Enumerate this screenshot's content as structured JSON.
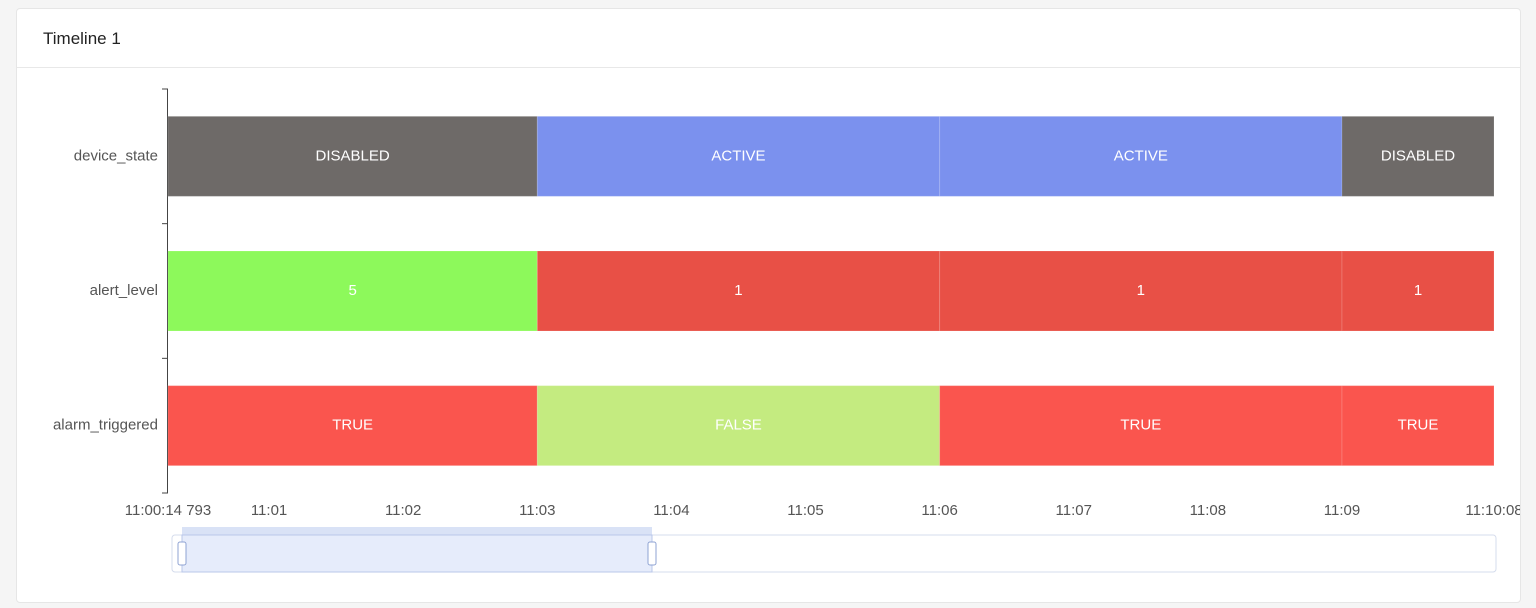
{
  "chart_data": {
    "type": "timeline",
    "title": "Timeline 1",
    "xlim": [
      14.793,
      608
    ],
    "xticks": [
      {
        "value": 14.793,
        "label": "11:00:14 793"
      },
      {
        "value": 60,
        "label": "11:01"
      },
      {
        "value": 120,
        "label": "11:02"
      },
      {
        "value": 180,
        "label": "11:03"
      },
      {
        "value": 240,
        "label": "11:04"
      },
      {
        "value": 300,
        "label": "11:05"
      },
      {
        "value": 360,
        "label": "11:06"
      },
      {
        "value": 420,
        "label": "11:07"
      },
      {
        "value": 480,
        "label": "11:08"
      },
      {
        "value": 540,
        "label": "11:09"
      },
      {
        "value": 608,
        "label": "11:10:08"
      }
    ],
    "series": [
      {
        "name": "device_state",
        "colors": {
          "DISABLED": "#6e6a68",
          "ACTIVE": "#7b91ee"
        },
        "segments": [
          {
            "start": 14.793,
            "end": 180,
            "value": "DISABLED"
          },
          {
            "start": 180,
            "end": 360,
            "value": "ACTIVE"
          },
          {
            "start": 360,
            "end": 540,
            "value": "ACTIVE"
          },
          {
            "start": 540,
            "end": 608,
            "value": "DISABLED"
          }
        ]
      },
      {
        "name": "alert_level",
        "colors": {
          "5": "#8df95b",
          "1": "#e85046"
        },
        "segments": [
          {
            "start": 14.793,
            "end": 180,
            "value": 5
          },
          {
            "start": 180,
            "end": 360,
            "value": 1
          },
          {
            "start": 360,
            "end": 540,
            "value": 1
          },
          {
            "start": 540,
            "end": 608,
            "value": 1
          }
        ]
      },
      {
        "name": "alarm_triggered",
        "colors": {
          "TRUE": "#fa554e",
          "FALSE": "#c4eb80"
        },
        "segments": [
          {
            "start": 14.793,
            "end": 180,
            "value": "TRUE"
          },
          {
            "start": 180,
            "end": 360,
            "value": "FALSE"
          },
          {
            "start": 360,
            "end": 540,
            "value": "TRUE"
          },
          {
            "start": 540,
            "end": 608,
            "value": "TRUE"
          }
        ]
      }
    ]
  }
}
